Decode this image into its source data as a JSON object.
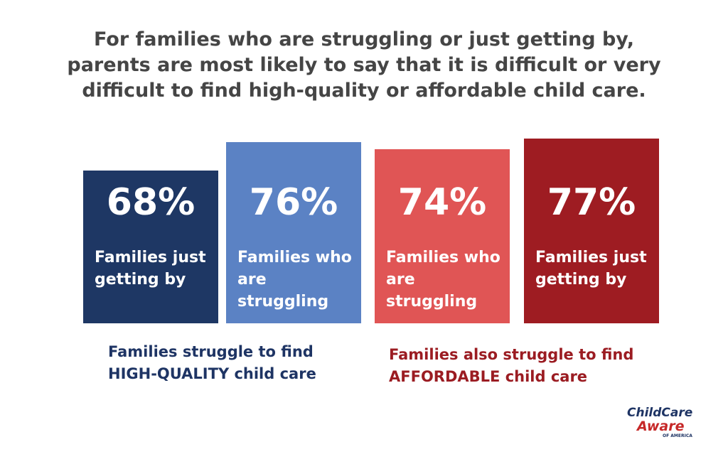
{
  "chart_data": {
    "type": "bar",
    "title": "For families who are struggling or just getting by, parents are most likely to say that it is difficult or very difficult to find high-quality or affordable child care.",
    "categories": [
      "Families just getting by",
      "Families who are struggling",
      "Families who are struggling",
      "Families just getting by"
    ],
    "values": [
      68,
      76,
      74,
      77
    ],
    "value_labels": [
      "68%",
      "76%",
      "74%",
      "77%"
    ],
    "colors": [
      "#1e3764",
      "#5b82c4",
      "#e05555",
      "#9e1c22"
    ],
    "ylim": [
      25,
      100
    ],
    "groups": [
      {
        "label": "Families struggle to find HIGH-QUALITY child care",
        "color": "#1e3464"
      },
      {
        "label": "Families also struggle to find AFFORDABLE child care",
        "color": "#9b1c22"
      }
    ],
    "logo": {
      "line1": "ChildCare",
      "line2": "Aware",
      "line3": "OF AMERICA"
    }
  }
}
